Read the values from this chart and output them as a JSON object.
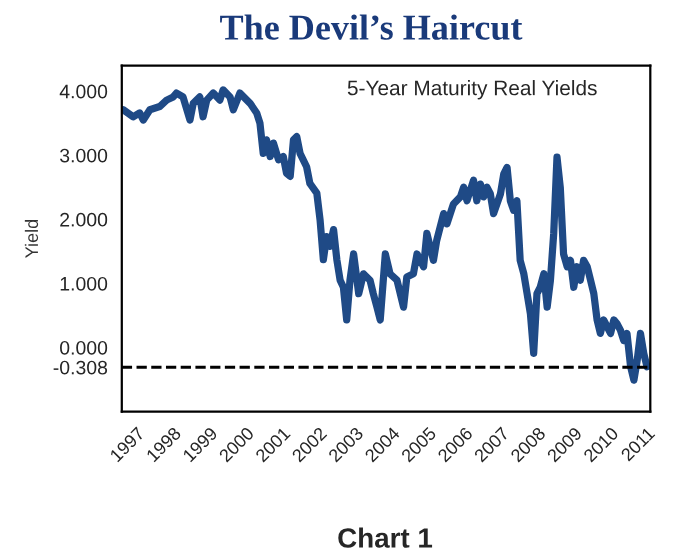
{
  "chart_data": {
    "type": "line",
    "title": "The Devil’s Haircut",
    "ylabel": "Yield",
    "annotations": [
      "5-Year Maturity Real Yields",
      "Chart 1"
    ],
    "x": [
      1996.64,
      1996.91,
      1997.09,
      1997.19,
      1997.37,
      1997.64,
      1997.83,
      1998.01,
      1998.1,
      1998.28,
      1998.47,
      1998.56,
      1998.74,
      1998.83,
      1998.93,
      1999.11,
      1999.29,
      1999.38,
      1999.57,
      1999.66,
      1999.84,
      2000.12,
      2000.3,
      2000.39,
      2000.48,
      2000.57,
      2000.67,
      2000.76,
      2000.9,
      2001.03,
      2001.12,
      2001.22,
      2001.31,
      2001.4,
      2001.49,
      2001.67,
      2001.76,
      2001.95,
      2002.04,
      2002.13,
      2002.22,
      2002.31,
      2002.41,
      2002.5,
      2002.59,
      2002.68,
      2002.77,
      2002.86,
      2002.96,
      2003.1,
      2003.23,
      2003.41,
      2003.5,
      2003.6,
      2003.69,
      2003.83,
      2003.96,
      2004.15,
      2004.33,
      2004.42,
      2004.6,
      2004.7,
      2004.88,
      2004.97,
      2005.15,
      2005.24,
      2005.43,
      2005.52,
      2005.7,
      2005.89,
      2005.98,
      2006.07,
      2006.25,
      2006.34,
      2006.44,
      2006.53,
      2006.62,
      2006.71,
      2006.8,
      2006.99,
      2007.08,
      2007.17,
      2007.26,
      2007.35,
      2007.44,
      2007.53,
      2007.63,
      2007.72,
      2007.81,
      2007.9,
      2007.99,
      2008.08,
      2008.18,
      2008.27,
      2008.36,
      2008.45,
      2008.54,
      2008.63,
      2008.72,
      2008.82,
      2008.91,
      2009.0,
      2009.09,
      2009.18,
      2009.27,
      2009.37,
      2009.46,
      2009.55,
      2009.64,
      2009.73,
      2009.82,
      2009.92,
      2010.01,
      2010.1,
      2010.19,
      2010.28,
      2010.37,
      2010.46,
      2010.56,
      2010.65,
      2010.74,
      2010.83,
      2010.92,
      2011.01
    ],
    "series": [
      {
        "color": "#1f4a86",
        "values": [
          3.71,
          3.6,
          3.66,
          3.55,
          3.71,
          3.76,
          3.86,
          3.91,
          3.97,
          3.91,
          3.55,
          3.81,
          3.91,
          3.6,
          3.86,
          3.97,
          3.86,
          4.02,
          3.91,
          3.71,
          3.97,
          3.81,
          3.66,
          3.5,
          3.03,
          3.24,
          2.98,
          3.19,
          2.93,
          2.98,
          2.72,
          2.67,
          3.24,
          3.29,
          3.03,
          2.82,
          2.56,
          2.41,
          1.99,
          1.37,
          1.73,
          1.58,
          1.84,
          1.37,
          1.05,
          0.94,
          0.43,
          1.05,
          1.46,
          0.84,
          1.15,
          1.05,
          0.84,
          0.63,
          0.43,
          1.46,
          1.15,
          1.05,
          0.63,
          1.1,
          1.15,
          1.46,
          1.26,
          1.78,
          1.36,
          1.67,
          2.09,
          1.93,
          2.24,
          2.35,
          2.5,
          2.29,
          2.61,
          2.29,
          2.55,
          2.35,
          2.5,
          2.4,
          2.09,
          2.4,
          2.71,
          2.81,
          2.29,
          2.14,
          2.29,
          1.36,
          1.15,
          0.84,
          0.53,
          -0.09,
          0.84,
          0.94,
          1.15,
          0.63,
          1.05,
          1.78,
          2.97,
          2.5,
          1.46,
          1.26,
          1.36,
          0.94,
          1.26,
          1.05,
          1.36,
          1.26,
          1.05,
          0.84,
          0.43,
          0.22,
          0.43,
          0.32,
          0.22,
          0.43,
          0.37,
          0.27,
          0.11,
          0.22,
          -0.3,
          -0.51,
          -0.2,
          0.22,
          -0.09,
          -0.3
        ]
      }
    ],
    "xlim": [
      1996.6,
      2011.1
    ],
    "xticks": [
      1997,
      1998,
      1999,
      2000,
      2001,
      2002,
      2003,
      2004,
      2005,
      2006,
      2007,
      2008,
      2009,
      2010,
      2011
    ],
    "ylim": [
      -1.0,
      4.4
    ],
    "yticks": [
      {
        "value": 4,
        "label": "4.000"
      },
      {
        "value": 3,
        "label": "3.000"
      },
      {
        "value": 2,
        "label": "2.000"
      },
      {
        "value": 1,
        "label": "1.000"
      },
      {
        "value": 0,
        "label": "0.000"
      },
      {
        "value": -0.308,
        "label": "-0.308"
      }
    ],
    "ref_lines": [
      {
        "axis": "y",
        "value": -0.308,
        "color": "#000000",
        "line_style": "dashed"
      }
    ],
    "grid": false,
    "legend": false,
    "line_style": "solid"
  }
}
